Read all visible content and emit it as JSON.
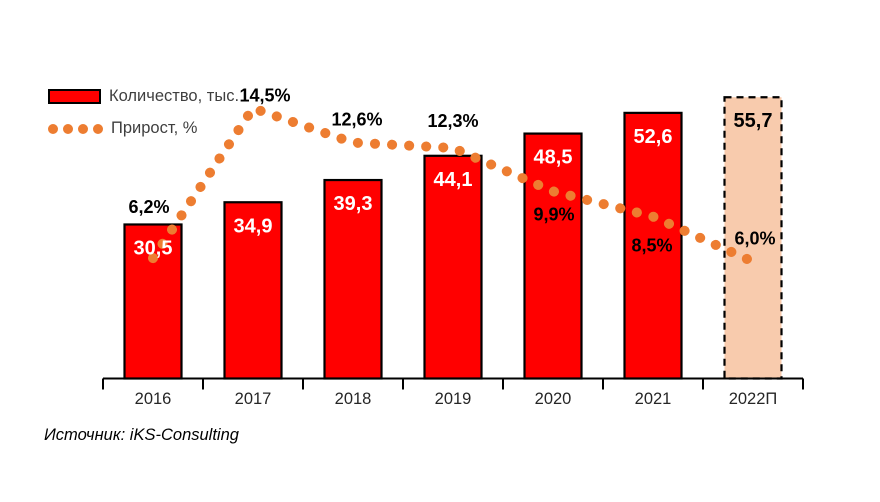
{
  "legend": {
    "bars_label": "Количество, тыс.",
    "line_label": "Прирост, %"
  },
  "source": {
    "text": "Источник: iKS-Consulting"
  },
  "chart_data": {
    "type": "bar",
    "subtype": "bar-line-combo",
    "categories": [
      "2016",
      "2017",
      "2018",
      "2019",
      "2020",
      "2021",
      "2022П"
    ],
    "series": [
      {
        "name": "Количество, тыс.",
        "type": "bar",
        "values": [
          30.5,
          34.9,
          39.3,
          44.1,
          48.5,
          52.6,
          55.7
        ],
        "labels": [
          "30,5",
          "34,9",
          "39,3",
          "44,1",
          "48,5",
          "52,6",
          "55,7"
        ],
        "forecast_index": 6
      },
      {
        "name": "Прирост, %",
        "type": "line",
        "values": [
          6.2,
          14.5,
          12.6,
          12.3,
          9.9,
          8.5,
          6.0
        ],
        "labels": [
          "6,2%",
          "14,5%",
          "12,6%",
          "12,3%",
          "9,9%",
          "8,5%",
          "6,0%"
        ]
      }
    ],
    "ylim": [
      0,
      60
    ],
    "grid": false,
    "legend_position": "top-left",
    "colors": {
      "bar_fill": "#FF0000",
      "bar_border": "#000000",
      "forecast_fill": "#F8CBAD",
      "forecast_border": "#000000",
      "line": "#ED7D31",
      "bar_value_label": "#FFFFFF",
      "forecast_value_label": "#000000",
      "pct_label": "#000000",
      "axis": "#000000",
      "tick_label": "#262626"
    }
  }
}
